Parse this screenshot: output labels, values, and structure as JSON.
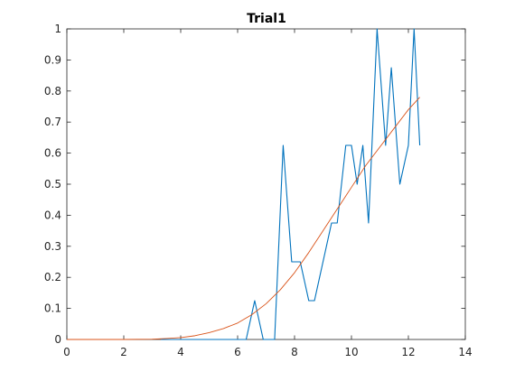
{
  "chart_data": {
    "type": "line",
    "title": "Trial1",
    "xlabel": "",
    "ylabel": "",
    "xlim": [
      0,
      14
    ],
    "ylim": [
      0,
      1
    ],
    "xticks": [
      0,
      2,
      4,
      6,
      8,
      10,
      12,
      14
    ],
    "yticks": [
      0,
      0.1,
      0.2,
      0.3,
      0.4,
      0.5,
      0.6,
      0.7,
      0.8,
      0.9,
      1
    ],
    "xtick_labels": [
      "0",
      "2",
      "4",
      "6",
      "8",
      "10",
      "12",
      "14"
    ],
    "ytick_labels": [
      "0",
      "0.1",
      "0.2",
      "0.3",
      "0.4",
      "0.5",
      "0.6",
      "0.7",
      "0.8",
      "0.9",
      "1"
    ],
    "grid": false,
    "box": true,
    "series": [
      {
        "color": "#0072bd",
        "x": [
          3.3,
          6.0,
          6.3,
          6.6,
          6.9,
          7.3,
          7.6,
          7.9,
          8.2,
          8.5,
          8.7,
          9.0,
          9.3,
          9.5,
          9.8,
          10.0,
          10.2,
          10.4,
          10.6,
          10.9,
          11.2,
          11.4,
          11.7,
          12.0,
          12.2,
          12.4
        ],
        "y": [
          0,
          0,
          0,
          0.125,
          0,
          0,
          0.625,
          0.25,
          0.25,
          0.125,
          0.125,
          0.25,
          0.375,
          0.375,
          0.625,
          0.625,
          0.5,
          0.625,
          0.375,
          1.0,
          0.625,
          0.875,
          0.5,
          0.625,
          1.0,
          0.625
        ]
      },
      {
        "color": "#d95319",
        "x": [
          0,
          1,
          2,
          3,
          3.5,
          4,
          4.5,
          5,
          5.5,
          6,
          6.5,
          7,
          7.5,
          8,
          8.5,
          9,
          9.5,
          10,
          10.5,
          11,
          11.5,
          12,
          12.4
        ],
        "y": [
          0,
          0,
          0,
          0.001,
          0.003,
          0.006,
          0.012,
          0.022,
          0.035,
          0.053,
          0.08,
          0.115,
          0.16,
          0.215,
          0.28,
          0.35,
          0.42,
          0.49,
          0.56,
          0.62,
          0.68,
          0.74,
          0.78
        ]
      }
    ]
  }
}
